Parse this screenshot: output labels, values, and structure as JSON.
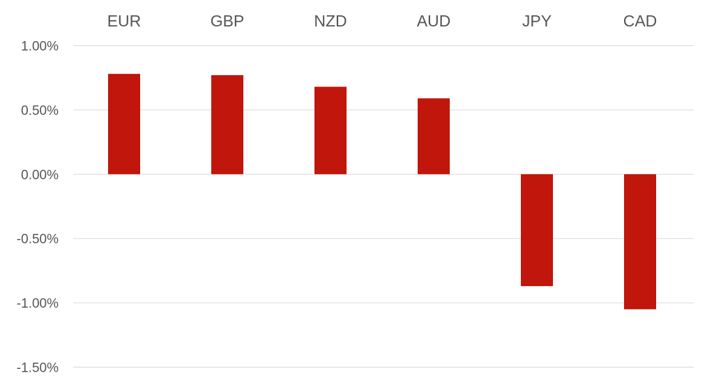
{
  "chart_data": {
    "type": "bar",
    "categories": [
      "EUR",
      "GBP",
      "NZD",
      "AUD",
      "JPY",
      "CAD"
    ],
    "values": [
      0.78,
      0.77,
      0.68,
      0.59,
      -0.87,
      -1.05
    ],
    "ylim": [
      -1.5,
      1.0
    ],
    "yticks": [
      1.0,
      0.5,
      0.0,
      -0.5,
      -1.0,
      -1.5
    ],
    "ytick_labels": [
      "1.00%",
      "0.50%",
      "0.00%",
      "-0.50%",
      "-1.00%",
      "-1.50%"
    ],
    "category_axis_position": "top",
    "grid": true,
    "bar_color": "#c0160b",
    "title": "",
    "xlabel": "",
    "ylabel": ""
  }
}
